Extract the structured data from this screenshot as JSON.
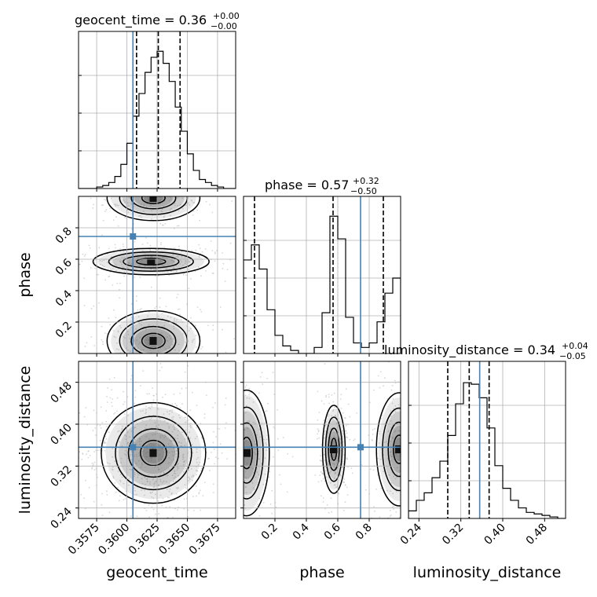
{
  "chart_data": {
    "type": "corner",
    "parameters": [
      "geocent_time",
      "phase",
      "luminosity_distance"
    ],
    "truths": {
      "geocent_time": 0.3605,
      "phase": 0.745,
      "luminosity_distance": 0.356
    },
    "colors": {
      "truth": "#4682b4",
      "hist": "#000000",
      "grid": "#b0b0b0",
      "points": "#bdbdbd",
      "density": "#555555"
    },
    "titles": [
      {
        "param": "geocent_time",
        "label": "geocent_time = 0.36",
        "plus": "+0.00",
        "minus": "−0.00"
      },
      {
        "param": "phase",
        "label": "phase = 0.57",
        "plus": "+0.32",
        "minus": "−0.50"
      },
      {
        "param": "luminosity_distance",
        "label": "luminosity_distance = 0.34",
        "plus": "+0.04",
        "minus": "−0.05"
      }
    ],
    "axes": {
      "geocent_time": {
        "range": [
          0.356,
          0.369
        ],
        "ticks": [
          0.3575,
          0.36,
          0.3625,
          0.365,
          0.3675
        ],
        "tick_labels": [
          "0.3575",
          "0.3600",
          "0.3625",
          "0.3650",
          "0.3675"
        ],
        "quantiles": [
          0.3608,
          0.3626,
          0.3644
        ]
      },
      "phase": {
        "range": [
          0.0,
          1.0
        ],
        "ticks": [
          0.2,
          0.4,
          0.6,
          0.8
        ],
        "tick_labels": [
          "0.2",
          "0.4",
          "0.6",
          "0.8"
        ],
        "quantiles": [
          0.07,
          0.57,
          0.89
        ]
      },
      "luminosity_distance": {
        "range": [
          0.22,
          0.52
        ],
        "ticks": [
          0.24,
          0.32,
          0.4,
          0.48
        ],
        "tick_labels": [
          "0.24",
          "0.32",
          "0.40",
          "0.48"
        ],
        "quantiles": [
          0.295,
          0.336,
          0.374
        ]
      }
    },
    "histograms": {
      "geocent_time": {
        "edges": [
          0.356,
          0.3565,
          0.357,
          0.3575,
          0.358,
          0.3585,
          0.359,
          0.3595,
          0.36,
          0.3605,
          0.361,
          0.3615,
          0.362,
          0.3625,
          0.363,
          0.3635,
          0.364,
          0.3645,
          0.365,
          0.3655,
          0.366,
          0.3665,
          0.367,
          0.3675,
          0.368,
          0.3685,
          0.369
        ],
        "values": [
          0.0,
          0.0,
          0.0,
          0.01,
          0.02,
          0.04,
          0.08,
          0.16,
          0.3,
          0.48,
          0.63,
          0.77,
          0.87,
          0.91,
          0.83,
          0.71,
          0.54,
          0.38,
          0.23,
          0.12,
          0.06,
          0.04,
          0.02,
          0.01,
          0.0,
          0.0
        ]
      },
      "phase": {
        "edges": [
          0.0,
          0.05,
          0.1,
          0.15,
          0.2,
          0.25,
          0.3,
          0.35,
          0.4,
          0.45,
          0.5,
          0.55,
          0.6,
          0.65,
          0.7,
          0.75,
          0.8,
          0.85,
          0.9,
          0.95,
          1.0
        ],
        "values": [
          0.62,
          0.72,
          0.56,
          0.29,
          0.12,
          0.05,
          0.02,
          0.0,
          0.0,
          0.04,
          0.27,
          0.91,
          0.76,
          0.24,
          0.07,
          0.04,
          0.07,
          0.21,
          0.4,
          0.5
        ]
      },
      "luminosity_distance": {
        "edges": [
          0.22,
          0.235,
          0.25,
          0.265,
          0.28,
          0.295,
          0.31,
          0.325,
          0.34,
          0.355,
          0.37,
          0.385,
          0.4,
          0.415,
          0.43,
          0.445,
          0.46,
          0.475,
          0.49,
          0.505,
          0.52
        ],
        "values": [
          0.05,
          0.12,
          0.17,
          0.27,
          0.38,
          0.55,
          0.76,
          0.9,
          0.89,
          0.8,
          0.6,
          0.35,
          0.2,
          0.12,
          0.07,
          0.04,
          0.03,
          0.02,
          0.01,
          0.0
        ]
      }
    },
    "density_blobs": {
      "phase_vs_geocent_time": [
        {
          "x": 0.3622,
          "y": 0.99,
          "sx": 0.0016,
          "sy": 0.06
        },
        {
          "x": 0.362,
          "y": 0.585,
          "sx": 0.002,
          "sy": 0.035
        },
        {
          "x": 0.3622,
          "y": 0.08,
          "sx": 0.0016,
          "sy": 0.08
        }
      ],
      "luminosity_distance_vs_geocent_time": [
        {
          "x": 0.3622,
          "y": 0.345,
          "sx": 0.0018,
          "sy": 0.04
        }
      ],
      "luminosity_distance_vs_phase": [
        {
          "x": 0.02,
          "y": 0.345,
          "sx": 0.06,
          "sy": 0.05
        },
        {
          "x": 0.575,
          "y": 0.352,
          "sx": 0.03,
          "sy": 0.035
        },
        {
          "x": 0.99,
          "y": 0.352,
          "sx": 0.06,
          "sy": 0.045
        }
      ]
    }
  }
}
